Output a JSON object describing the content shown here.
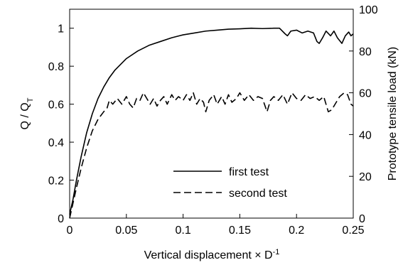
{
  "chart_data": {
    "type": "line",
    "xlabel": {
      "main": "Vertical displacement × D",
      "sup": "-1"
    },
    "ylabel": {
      "main": "Q / Q",
      "sub": "T"
    },
    "y2label": "Prototype tensile load (kN)",
    "xlim": [
      0,
      0.25
    ],
    "ylim": [
      0,
      1.1
    ],
    "y2lim": [
      0,
      100
    ],
    "xticks": [
      "0",
      "0.05",
      "0.1",
      "0.15",
      "0.2",
      "0.25"
    ],
    "yticks": [
      "0",
      "0.2",
      "0.4",
      "0.6",
      "0.8",
      "1"
    ],
    "y2ticks": [
      "0",
      "20",
      "40",
      "60",
      "80",
      "100"
    ],
    "grid": false,
    "legend": "bottom-right",
    "series": [
      {
        "name": "first test",
        "style": "solid",
        "points": [
          [
            0,
            0.02
          ],
          [
            0.003,
            0.1
          ],
          [
            0.006,
            0.2
          ],
          [
            0.01,
            0.32
          ],
          [
            0.015,
            0.45
          ],
          [
            0.02,
            0.55
          ],
          [
            0.025,
            0.63
          ],
          [
            0.03,
            0.69
          ],
          [
            0.035,
            0.74
          ],
          [
            0.04,
            0.78
          ],
          [
            0.05,
            0.84
          ],
          [
            0.06,
            0.88
          ],
          [
            0.07,
            0.91
          ],
          [
            0.08,
            0.93
          ],
          [
            0.09,
            0.95
          ],
          [
            0.1,
            0.965
          ],
          [
            0.11,
            0.975
          ],
          [
            0.12,
            0.985
          ],
          [
            0.13,
            0.99
          ],
          [
            0.14,
            0.995
          ],
          [
            0.15,
            0.997
          ],
          [
            0.16,
            1.0
          ],
          [
            0.17,
            0.998
          ],
          [
            0.18,
            1.0
          ],
          [
            0.185,
            1.0
          ],
          [
            0.19,
            0.97
          ],
          [
            0.192,
            0.96
          ],
          [
            0.195,
            0.985
          ],
          [
            0.2,
            0.99
          ],
          [
            0.205,
            0.975
          ],
          [
            0.21,
            0.985
          ],
          [
            0.215,
            0.975
          ],
          [
            0.218,
            0.93
          ],
          [
            0.22,
            0.92
          ],
          [
            0.223,
            0.95
          ],
          [
            0.226,
            0.985
          ],
          [
            0.23,
            0.96
          ],
          [
            0.233,
            0.985
          ],
          [
            0.236,
            0.95
          ],
          [
            0.24,
            0.92
          ],
          [
            0.243,
            0.96
          ],
          [
            0.246,
            0.98
          ],
          [
            0.248,
            0.96
          ],
          [
            0.25,
            0.97
          ]
        ]
      },
      {
        "name": "second test",
        "style": "dashed",
        "points": [
          [
            0,
            0.0
          ],
          [
            0.003,
            0.08
          ],
          [
            0.006,
            0.16
          ],
          [
            0.01,
            0.26
          ],
          [
            0.015,
            0.37
          ],
          [
            0.02,
            0.46
          ],
          [
            0.025,
            0.52
          ],
          [
            0.03,
            0.56
          ],
          [
            0.033,
            0.58
          ],
          [
            0.035,
            0.62
          ],
          [
            0.038,
            0.6
          ],
          [
            0.042,
            0.63
          ],
          [
            0.046,
            0.6
          ],
          [
            0.05,
            0.64
          ],
          [
            0.053,
            0.6
          ],
          [
            0.056,
            0.58
          ],
          [
            0.059,
            0.63
          ],
          [
            0.062,
            0.62
          ],
          [
            0.065,
            0.66
          ],
          [
            0.068,
            0.63
          ],
          [
            0.071,
            0.6
          ],
          [
            0.074,
            0.63
          ],
          [
            0.077,
            0.59
          ],
          [
            0.08,
            0.62
          ],
          [
            0.083,
            0.64
          ],
          [
            0.086,
            0.6
          ],
          [
            0.09,
            0.65
          ],
          [
            0.093,
            0.62
          ],
          [
            0.096,
            0.64
          ],
          [
            0.1,
            0.62
          ],
          [
            0.103,
            0.65
          ],
          [
            0.106,
            0.62
          ],
          [
            0.109,
            0.66
          ],
          [
            0.112,
            0.6
          ],
          [
            0.115,
            0.63
          ],
          [
            0.118,
            0.61
          ],
          [
            0.12,
            0.56
          ],
          [
            0.123,
            0.62
          ],
          [
            0.127,
            0.65
          ],
          [
            0.13,
            0.6
          ],
          [
            0.134,
            0.64
          ],
          [
            0.137,
            0.6
          ],
          [
            0.14,
            0.65
          ],
          [
            0.143,
            0.61
          ],
          [
            0.147,
            0.63
          ],
          [
            0.15,
            0.66
          ],
          [
            0.154,
            0.62
          ],
          [
            0.158,
            0.65
          ],
          [
            0.162,
            0.62
          ],
          [
            0.166,
            0.64
          ],
          [
            0.17,
            0.63
          ],
          [
            0.174,
            0.56
          ],
          [
            0.177,
            0.62
          ],
          [
            0.18,
            0.64
          ],
          [
            0.184,
            0.62
          ],
          [
            0.188,
            0.65
          ],
          [
            0.192,
            0.6
          ],
          [
            0.196,
            0.66
          ],
          [
            0.2,
            0.63
          ],
          [
            0.204,
            0.62
          ],
          [
            0.208,
            0.65
          ],
          [
            0.212,
            0.63
          ],
          [
            0.216,
            0.64
          ],
          [
            0.22,
            0.62
          ],
          [
            0.224,
            0.64
          ],
          [
            0.228,
            0.56
          ],
          [
            0.231,
            0.57
          ],
          [
            0.234,
            0.6
          ],
          [
            0.238,
            0.64
          ],
          [
            0.242,
            0.66
          ],
          [
            0.245,
            0.65
          ],
          [
            0.248,
            0.6
          ],
          [
            0.25,
            0.59
          ]
        ]
      }
    ]
  }
}
